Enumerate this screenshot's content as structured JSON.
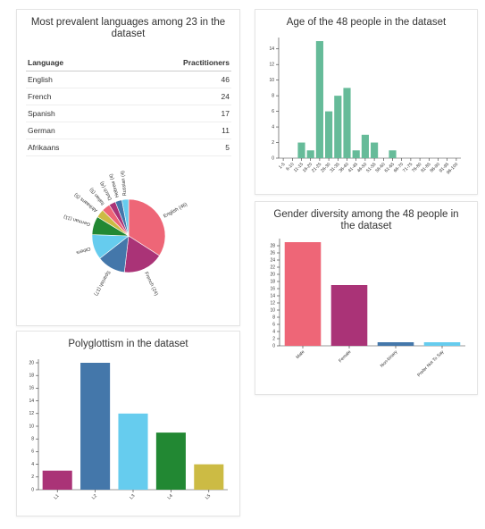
{
  "table": {
    "header": [
      "Language",
      "Practitioners"
    ],
    "rows": [
      [
        "English",
        46
      ],
      [
        "French",
        24
      ],
      [
        "Spanish",
        17
      ],
      [
        "German",
        11
      ],
      [
        "Afrikaans",
        5
      ]
    ]
  },
  "chart_data": [
    {
      "type": "pie",
      "title": "Most prevalent languages among 23 in the dataset",
      "categories": [
        "English (46)",
        "French (24)",
        "Spanish (17)",
        "Others",
        "German (11)",
        "Afrikaans (5)",
        "Italian (5)",
        "Dutch (4)",
        "Hebrew (4)",
        "Russian (4)"
      ],
      "values": [
        46,
        24,
        17,
        15,
        11,
        5,
        5,
        4,
        4,
        4
      ],
      "colors": [
        "#ee6677",
        "#aa3377",
        "#4477aa",
        "#66ccee",
        "#228833",
        "#ccbb44",
        "#ee6677",
        "#aa3377",
        "#4477aa",
        "#66ccee"
      ]
    },
    {
      "type": "bar",
      "title": "Age of the 48 people in the dataset",
      "categories": [
        "1-5",
        "6-10",
        "11-15",
        "16-20",
        "21-25",
        "26-30",
        "31-35",
        "36-40",
        "41-45",
        "46-50",
        "51-55",
        "56-60",
        "61-65",
        "66-70",
        "71-75",
        "76-80",
        "81-85",
        "86-90",
        "91-95",
        "96-100"
      ],
      "values": [
        0,
        0,
        2,
        1,
        15,
        6,
        8,
        9,
        1,
        3,
        2,
        0,
        1,
        0,
        0,
        0,
        0,
        0,
        0,
        0
      ],
      "color": "#66bb99",
      "ylim": [
        0,
        15
      ],
      "yticks": [
        0,
        2,
        4,
        6,
        8,
        10,
        12,
        14
      ]
    },
    {
      "type": "bar",
      "title": "Gender diversity among the 48 people in the dataset",
      "categories": [
        "Male",
        "Female",
        "Non-binary",
        "Prefer Not To Say"
      ],
      "values": [
        29,
        17,
        1,
        1
      ],
      "colors": [
        "#ee6677",
        "#aa3377",
        "#4477aa",
        "#66ccee"
      ],
      "ylim": [
        0,
        29
      ],
      "yticks": [
        0,
        2,
        4,
        6,
        8,
        10,
        12,
        14,
        16,
        18,
        20,
        22,
        24,
        26,
        28
      ]
    },
    {
      "type": "bar",
      "title": "Polyglottism in the dataset",
      "categories": [
        "L1",
        "L2",
        "L3",
        "L4",
        "L5"
      ],
      "values": [
        3,
        20,
        12,
        9,
        4
      ],
      "colors": [
        "#aa3377",
        "#4477aa",
        "#66ccee",
        "#228833",
        "#ccbb44"
      ],
      "ylim": [
        0,
        20
      ],
      "yticks": [
        0,
        2,
        4,
        6,
        8,
        10,
        12,
        14,
        16,
        18,
        20
      ]
    }
  ]
}
